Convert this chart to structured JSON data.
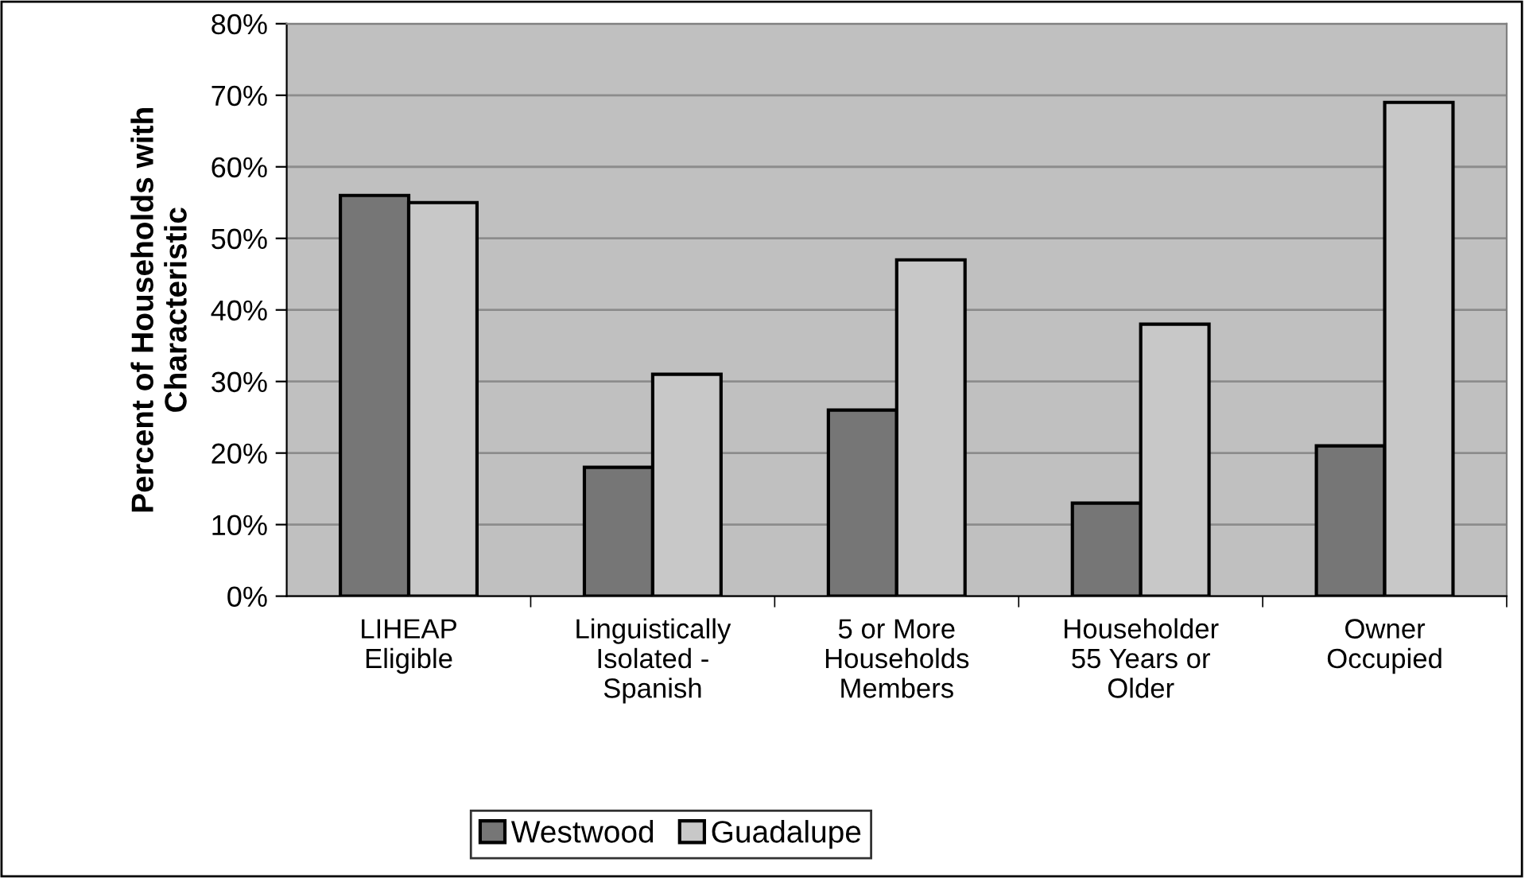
{
  "chart_data": {
    "type": "bar",
    "ylabel": "Percent of Households with\nCharacteristic",
    "categories": [
      "LIHEAP\nEligible",
      "Linguistically\nIsolated -\nSpanish",
      "5 or More\nHouseholds\nMembers",
      "Householder\n55 Years or\nOlder",
      "Owner\nOccupied"
    ],
    "series": [
      {
        "name": "Westwood",
        "color": "#767676",
        "values": [
          56,
          18,
          26,
          13,
          21
        ]
      },
      {
        "name": "Guadalupe",
        "color": "#c8c8c8",
        "values": [
          55,
          31,
          47,
          38,
          69
        ]
      }
    ],
    "ylim": [
      0,
      80
    ],
    "yticks": [
      {
        "value": 0,
        "label": "0%"
      },
      {
        "value": 10,
        "label": "10%"
      },
      {
        "value": 20,
        "label": "20%"
      },
      {
        "value": 30,
        "label": "30%"
      },
      {
        "value": 40,
        "label": "40%"
      },
      {
        "value": 50,
        "label": "50%"
      },
      {
        "value": 60,
        "label": "60%"
      },
      {
        "value": 70,
        "label": "70%"
      },
      {
        "value": 80,
        "label": "80%"
      }
    ],
    "grid": "y",
    "legend": "bottom"
  }
}
